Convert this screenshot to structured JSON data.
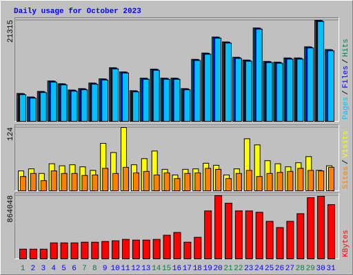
{
  "chart_data": [
    {
      "type": "bar",
      "title": "Daily usage for October 2023",
      "separator": "/",
      "ylim": [
        0,
        21315
      ],
      "yticks": [
        21315
      ],
      "series": [
        {
          "name": "Hits",
          "color": "#00805c",
          "values": [
            5880,
            5145,
            6321,
            8526,
            7938,
            6615,
            6909,
            8085,
            8967,
            11319,
            10437,
            6468,
            9114,
            11025,
            9114,
            9114,
            6909,
            13083,
            14406,
            17787,
            16758,
            13524,
            12936,
            19698,
            12642,
            12495,
            13377,
            13377,
            15729,
            21315,
            15141
          ]
        },
        {
          "name": "Files",
          "color": "#0000ff",
          "values": [
            5820,
            5085,
            6261,
            8466,
            7878,
            6555,
            6849,
            8025,
            8907,
            11259,
            10377,
            6408,
            9054,
            10965,
            9054,
            9054,
            6849,
            13023,
            14346,
            17727,
            16698,
            13464,
            12876,
            19638,
            12582,
            12435,
            13317,
            13317,
            15669,
            21255,
            15081
          ]
        },
        {
          "name": "Pages",
          "color": "#00c0ff",
          "values": [
            5630,
            4895,
            6071,
            8276,
            7688,
            6365,
            6659,
            7835,
            8717,
            11069,
            10187,
            6218,
            8864,
            10775,
            8864,
            8864,
            6659,
            12833,
            14156,
            17537,
            16508,
            13274,
            12686,
            19448,
            12392,
            12245,
            13127,
            13127,
            15479,
            21065,
            14891
          ]
        }
      ]
    },
    {
      "type": "bar",
      "separator": "/",
      "ylim": [
        0,
        124
      ],
      "yticks": [
        124
      ],
      "series": [
        {
          "name": "Visits",
          "color": "#ffff00",
          "values": [
            39,
            43,
            34,
            53,
            49,
            51,
            47,
            40,
            93,
            75,
            124,
            51,
            63,
            78,
            42,
            31,
            42,
            43,
            54,
            50,
            31,
            43,
            102,
            90,
            59,
            53,
            47,
            55,
            67,
            40,
            49
          ]
        },
        {
          "name": "Sites",
          "color": "#ff8000",
          "values": [
            28,
            34,
            20,
            39,
            34,
            34,
            30,
            31,
            44,
            34,
            46,
            35,
            38,
            31,
            35,
            24,
            34,
            35,
            44,
            42,
            24,
            34,
            40,
            28,
            34,
            36,
            38,
            44,
            40,
            39,
            46
          ]
        }
      ]
    },
    {
      "type": "bar",
      "ylim": [
        0,
        864048
      ],
      "yticks": [
        864048
      ],
      "categories": [
        "1",
        "2",
        "3",
        "4",
        "5",
        "6",
        "7",
        "8",
        "9",
        "10",
        "11",
        "12",
        "13",
        "14",
        "15",
        "16",
        "17",
        "18",
        "19",
        "20",
        "21",
        "22",
        "23",
        "24",
        "25",
        "26",
        "27",
        "28",
        "29",
        "30",
        "31"
      ],
      "category_colors": [
        "#008040",
        "#0000ff",
        "#0000ff",
        "#0000ff",
        "#0000ff",
        "#0000ff",
        "#008040",
        "#008040",
        "#0000ff",
        "#0000ff",
        "#0000ff",
        "#0000ff",
        "#0000ff",
        "#008040",
        "#008040",
        "#0000ff",
        "#0000ff",
        "#0000ff",
        "#0000ff",
        "#0000ff",
        "#008040",
        "#008040",
        "#0000ff",
        "#0000ff",
        "#0000ff",
        "#0000ff",
        "#0000ff",
        "#008040",
        "#008040",
        "#0000ff",
        "#0000ff"
      ],
      "series": [
        {
          "name": "KBytes",
          "color": "#ff0000",
          "values": [
            132930,
            132930,
            132930,
            218385,
            218385,
            218385,
            227880,
            227880,
            237375,
            246870,
            265860,
            256365,
            256365,
            265860,
            322830,
            360810,
            227880,
            294345,
            655155,
            864048,
            759600,
            655155,
            655155,
            636165,
            512730,
            427275,
            512730,
            617175,
            835560,
            854550,
            740610
          ]
        }
      ]
    }
  ]
}
